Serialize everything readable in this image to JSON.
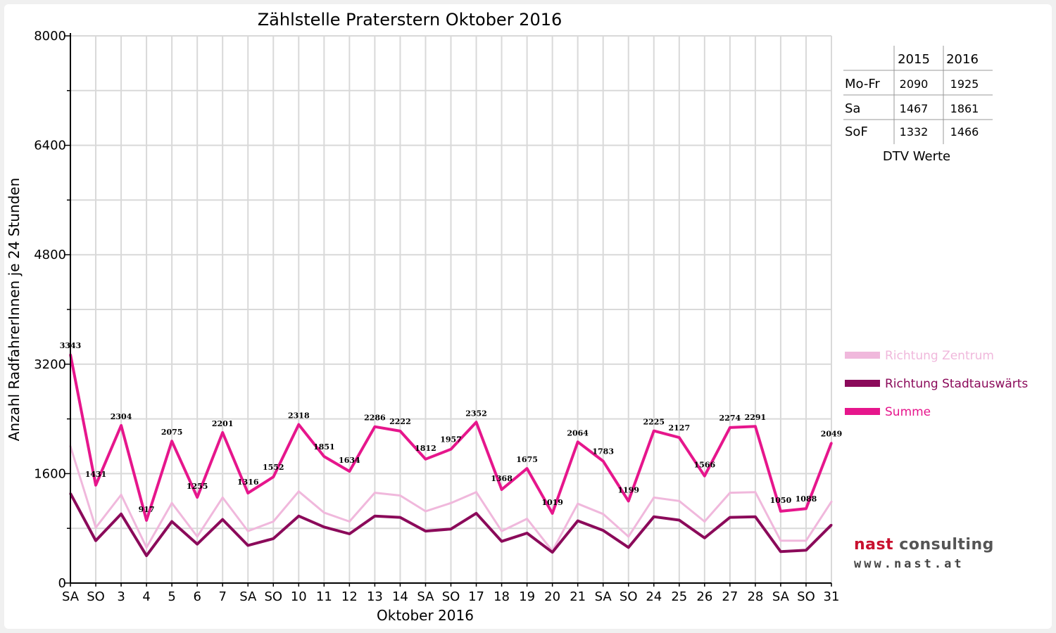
{
  "chart_data": {
    "type": "line",
    "title": "Zählstelle Praterstern Oktober 2016",
    "xlabel": "Oktober 2016",
    "ylabel": "Anzahl RadfahrerInnen je 24 Stunden",
    "ylim": [
      0,
      8000
    ],
    "yticks": [
      "0",
      "1600",
      "3200",
      "4800",
      "6400",
      "8000"
    ],
    "grid": true,
    "legend_position": "right",
    "categories": [
      "SA",
      "SO",
      "3",
      "4",
      "5",
      "6",
      "7",
      "SA",
      "SO",
      "10",
      "11",
      "12",
      "13",
      "14",
      "SA",
      "SO",
      "17",
      "18",
      "19",
      "20",
      "21",
      "SA",
      "SO",
      "24",
      "25",
      "26",
      "27",
      "28",
      "SA",
      "SO",
      "31"
    ],
    "red_categories": [
      1,
      8,
      15,
      22,
      25,
      29
    ],
    "series": [
      {
        "name": "Richtung Zentrum",
        "color": "#f0b8dc",
        "values": [
          2000,
          810,
          1290,
          520,
          1170,
          680,
          1250,
          760,
          900,
          1340,
          1030,
          900,
          1320,
          1280,
          1050,
          1170,
          1330,
          760,
          940,
          470,
          1160,
          1010,
          680,
          1250,
          1200,
          900,
          1320,
          1330,
          620,
          620,
          1190
        ]
      },
      {
        "name": "Richtung Stadtauswärts",
        "color": "#8b0a5a",
        "values": [
          1310,
          620,
          1010,
          400,
          900,
          570,
          930,
          550,
          650,
          980,
          820,
          720,
          980,
          960,
          760,
          790,
          1020,
          610,
          730,
          450,
          910,
          770,
          520,
          970,
          920,
          660,
          960,
          970,
          460,
          480,
          850
        ]
      },
      {
        "name": "Summe",
        "color": "#e6168c",
        "values": [
          3343,
          1431,
          2304,
          917,
          2075,
          1255,
          2201,
          1316,
          1552,
          2318,
          1851,
          1634,
          2286,
          2222,
          1812,
          1957,
          2352,
          1368,
          1675,
          1019,
          2064,
          1783,
          1199,
          2225,
          2127,
          1566,
          2274,
          2291,
          1050,
          1088,
          2049
        ]
      }
    ],
    "data_labels": [
      "3343",
      "1431",
      "2304",
      "917",
      "2075",
      "1255",
      "2201",
      "1316",
      "1552",
      "2318",
      "1851",
      "1634",
      "2286",
      "2222",
      "1812",
      "1957",
      "2352",
      "1368",
      "1675",
      "1019",
      "2064",
      "1783",
      "1199",
      "2225",
      "2127",
      "1566",
      "2274",
      "2291",
      "1050",
      "1088",
      "2049"
    ]
  },
  "dtv_table": {
    "headers": [
      "",
      "2015",
      "2016"
    ],
    "rows": [
      [
        "Mo-Fr",
        "2090",
        "1925"
      ],
      [
        "Sa",
        "1467",
        "1861"
      ],
      [
        "SoF",
        "1332",
        "1466"
      ]
    ],
    "caption": "DTV Werte"
  },
  "logo": {
    "brand": "nast",
    "brand_rest": " consulting",
    "url": "www.nast.at"
  },
  "colors": {
    "weekday_label": "#000000",
    "holiday_label": "#e00000"
  }
}
